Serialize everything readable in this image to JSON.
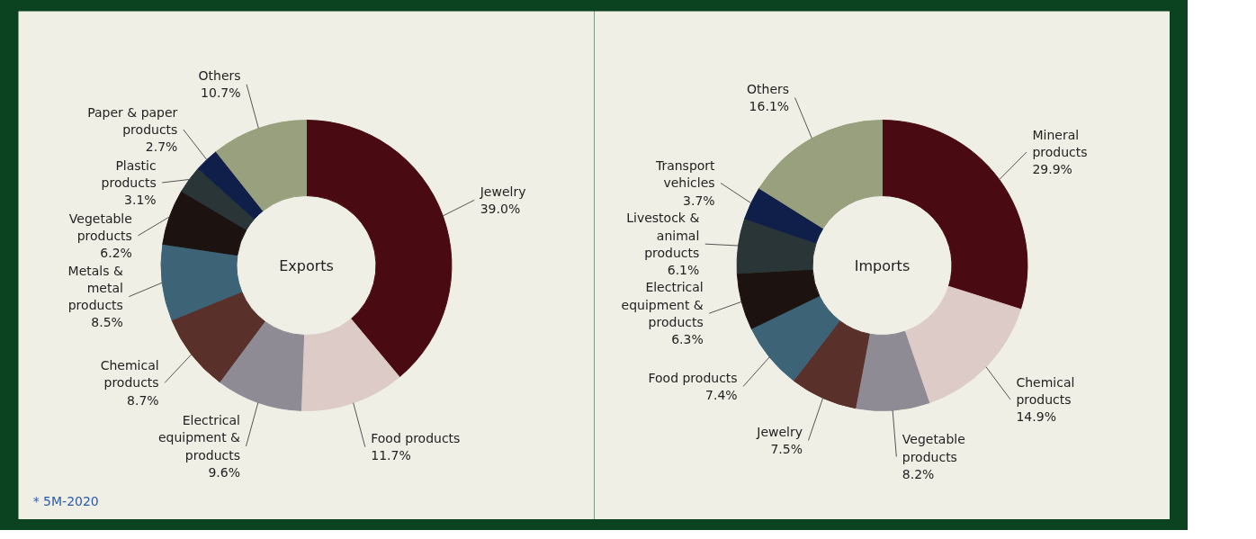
{
  "chart_data": [
    {
      "type": "donut",
      "title": "Exports",
      "categories": [
        "Jewelry",
        "Food products",
        "Electrical equipment & products",
        "Chemical products",
        "Metals & metal products",
        "Vegetable products",
        "Plastic products",
        "Paper & paper products",
        "Others"
      ],
      "values": [
        39.0,
        11.7,
        9.6,
        8.7,
        8.5,
        6.2,
        3.1,
        2.7,
        10.7
      ],
      "colors": [
        "#4a0a12",
        "#dccbc6",
        "#8f8b94",
        "#5a302b",
        "#3d6377",
        "#1c1310",
        "#2a3538",
        "#0f1f4a",
        "#98a07e"
      ],
      "value_labels": [
        "39.0%",
        "11.7%",
        "9.6%",
        "8.7%",
        "8.5%",
        "6.2%",
        "3.1%",
        "2.7%",
        "10.7%"
      ],
      "annotations": [
        "* 5M-2020"
      ]
    },
    {
      "type": "donut",
      "title": "Imports",
      "categories": [
        "Mineral products",
        "Chemical products",
        "Vegetable products",
        "Jewelry",
        "Food products",
        "Electrical equipment & products",
        "Livestock & animal products",
        "Transport vehicles",
        "Others"
      ],
      "values": [
        29.9,
        14.9,
        8.2,
        7.5,
        7.4,
        6.3,
        6.1,
        3.7,
        16.1
      ],
      "colors": [
        "#4a0a12",
        "#dccbc6",
        "#8f8b94",
        "#5a302b",
        "#3d6377",
        "#1c1310",
        "#2a3538",
        "#0f1f4a",
        "#98a07e"
      ],
      "value_labels": [
        "29.9%",
        "14.9%",
        "8.2%",
        "7.5%",
        "7.4%",
        "6.3%",
        "6.1%",
        "3.7%",
        "16.1%"
      ]
    }
  ]
}
